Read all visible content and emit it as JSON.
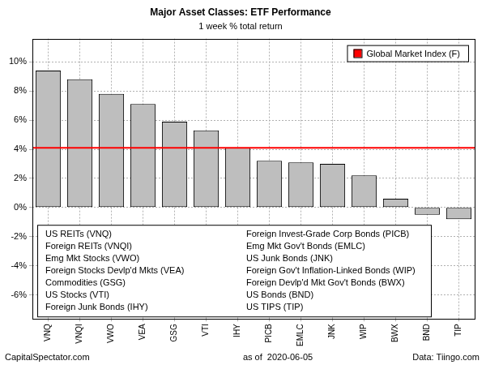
{
  "chart_data": {
    "type": "bar",
    "title": "Major Asset Classes: ETF Performance",
    "subtitle": "1 week % total return",
    "categories": [
      "VNQ",
      "VNQI",
      "VWO",
      "VEA",
      "GSG",
      "VTI",
      "IHY",
      "PICB",
      "EMLC",
      "JNK",
      "WIP",
      "BWX",
      "BND",
      "TIP"
    ],
    "values": [
      9.4,
      8.8,
      7.8,
      7.1,
      5.9,
      5.3,
      4.1,
      3.2,
      3.1,
      3.0,
      2.2,
      0.6,
      -0.5,
      -0.8
    ],
    "color": "#bebebe",
    "ylim": [
      -7.6,
      11.6
    ],
    "yticks": [
      {
        "value": -6,
        "label": "-6%"
      },
      {
        "value": -4,
        "label": "-4%"
      },
      {
        "value": -2,
        "label": "-2%"
      },
      {
        "value": 0,
        "label": "0%"
      },
      {
        "value": 2,
        "label": "2%"
      },
      {
        "value": 4,
        "label": "4%"
      },
      {
        "value": 6,
        "label": "6%"
      },
      {
        "value": 8,
        "label": "8%"
      },
      {
        "value": 10,
        "label": "10%"
      }
    ],
    "grid": true,
    "legend": "top right",
    "reference_line": {
      "name": "Global Market Index (F)",
      "value": 4.1,
      "color": "#ff0000"
    },
    "annotation": [
      "US REITs (VNQ)",
      "Foreign REITs (VNQI)",
      "Emg Mkt Stocks (VWO)",
      "Foreign Stocks Devlp'd Mkts (VEA)",
      "Commodities (GSG)",
      "US Stocks (VTI)",
      "Foreign Junk Bonds (IHY)",
      "Foreign Invest-Grade Corp Bonds (PICB)",
      "Emg Mkt Gov't Bonds (EMLC)",
      "US Junk Bonds (JNK)",
      "Foreign Gov't Inflation-Linked Bonds (WIP)",
      "Foreign Devlp'd Mkt Gov't Bonds (BWX)",
      "US Bonds (BND)",
      "US TIPS (TIP)"
    ],
    "source": "CapitalSpectator.com",
    "date_note": "as of  2020-06-05",
    "data_credit": "Data: Tiingo.com"
  }
}
